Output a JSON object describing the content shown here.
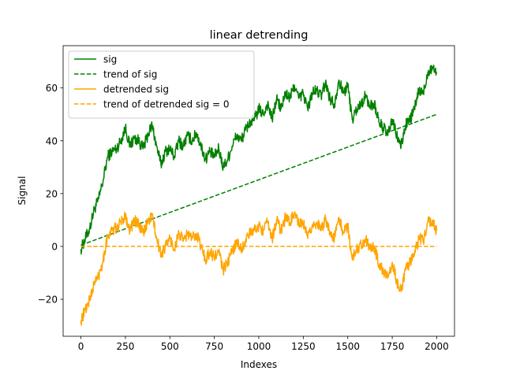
{
  "chart_data": {
    "type": "line",
    "title": "linear detrending",
    "xlabel": "Indexes",
    "ylabel": "Signal",
    "xlim": [
      -100,
      2100
    ],
    "ylim": [
      -34,
      76
    ],
    "xticks": [
      0,
      250,
      500,
      750,
      1000,
      1250,
      1500,
      1750,
      2000
    ],
    "xtick_labels": [
      "0",
      "250",
      "500",
      "750",
      "1000",
      "1250",
      "1500",
      "1750",
      "2000"
    ],
    "yticks": [
      -20,
      0,
      20,
      40,
      60
    ],
    "ytick_labels": [
      "−20",
      "0",
      "20",
      "40",
      "60"
    ],
    "grid": false,
    "legend_position": "top-left",
    "series": [
      {
        "name": "sig",
        "color": "#008000",
        "style": "solid",
        "x": [
          0,
          25,
          50,
          75,
          100,
          125,
          150,
          175,
          200,
          225,
          250,
          275,
          300,
          325,
          350,
          375,
          400,
          425,
          450,
          475,
          500,
          525,
          550,
          575,
          600,
          625,
          650,
          675,
          700,
          725,
          750,
          775,
          800,
          825,
          850,
          875,
          900,
          925,
          950,
          975,
          1000,
          1025,
          1050,
          1075,
          1100,
          1125,
          1150,
          1175,
          1200,
          1225,
          1250,
          1275,
          1300,
          1325,
          1350,
          1375,
          1400,
          1425,
          1450,
          1475,
          1500,
          1525,
          1550,
          1575,
          1600,
          1625,
          1650,
          1675,
          1700,
          1725,
          1750,
          1775,
          1800,
          1825,
          1850,
          1875,
          1900,
          1925,
          1950,
          1975,
          2000
        ],
        "y": [
          -1,
          3,
          7,
          14,
          18,
          25,
          34,
          36,
          37,
          40,
          45,
          38,
          41,
          40,
          37,
          42,
          46,
          38,
          31,
          36,
          37,
          34,
          40,
          38,
          42,
          40,
          43,
          38,
          33,
          36,
          34,
          37,
          30,
          33,
          38,
          42,
          40,
          44,
          47,
          48,
          52,
          50,
          54,
          48,
          56,
          52,
          58,
          56,
          61,
          56,
          58,
          52,
          58,
          59,
          57,
          62,
          56,
          54,
          63,
          58,
          61,
          48,
          52,
          54,
          57,
          53,
          54,
          47,
          45,
          42,
          48,
          42,
          38,
          46,
          48,
          52,
          59,
          58,
          66,
          68,
          66
        ],
        "data_labels": []
      },
      {
        "name": "trend of sig",
        "color": "#008000",
        "style": "dashed",
        "x": [
          0,
          2000
        ],
        "y": [
          0.5,
          50
        ],
        "data_labels": []
      },
      {
        "name": "detrended sig",
        "color": "#ffa500",
        "style": "solid",
        "x": [
          0,
          25,
          50,
          75,
          100,
          125,
          150,
          175,
          200,
          225,
          250,
          275,
          300,
          325,
          350,
          375,
          400,
          425,
          450,
          475,
          500,
          525,
          550,
          575,
          600,
          625,
          650,
          675,
          700,
          725,
          750,
          775,
          800,
          825,
          850,
          875,
          900,
          925,
          950,
          975,
          1000,
          1025,
          1050,
          1075,
          1100,
          1125,
          1150,
          1175,
          1200,
          1225,
          1250,
          1275,
          1300,
          1325,
          1350,
          1375,
          1400,
          1425,
          1450,
          1475,
          1500,
          1525,
          1550,
          1575,
          1600,
          1625,
          1650,
          1675,
          1700,
          1725,
          1750,
          1775,
          1800,
          1825,
          1850,
          1875,
          1900,
          1925,
          1950,
          1975,
          2000
        ],
        "y": [
          -28,
          -24,
          -20,
          -14,
          -11,
          -5,
          4,
          6,
          7,
          9,
          12,
          6,
          10,
          8,
          5,
          9,
          12,
          3,
          -3,
          0,
          3,
          -1,
          5,
          2,
          5,
          3,
          5,
          0,
          -5,
          -2,
          -4,
          -2,
          -9,
          -6,
          -2,
          2,
          -1,
          2,
          5,
          6,
          8,
          6,
          9,
          3,
          10,
          6,
          11,
          9,
          13,
          8,
          9,
          3,
          8,
          9,
          6,
          11,
          5,
          3,
          11,
          5,
          8,
          -5,
          -1,
          1,
          3,
          -1,
          0,
          -7,
          -9,
          -12,
          -6,
          -13,
          -17,
          -9,
          -6,
          -3,
          3,
          2,
          9,
          10,
          6
        ],
        "data_labels": []
      },
      {
        "name": "trend of detrended sig = 0",
        "color": "#ffa500",
        "style": "dashed",
        "x": [
          0,
          2000
        ],
        "y": [
          0,
          0
        ],
        "data_labels": []
      }
    ]
  }
}
